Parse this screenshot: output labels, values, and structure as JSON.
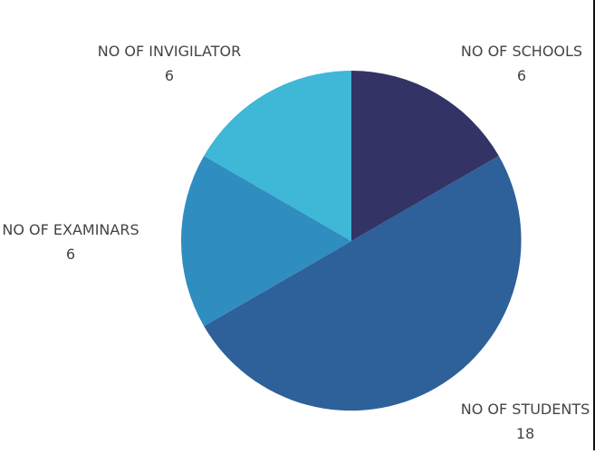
{
  "chart_data": {
    "type": "pie",
    "title": "",
    "slices": [
      {
        "label": "NO OF SCHOOLS",
        "value": 6,
        "display": "6",
        "color": "#333366"
      },
      {
        "label": "NO OF STUDENTS",
        "value": 18,
        "display": "18",
        "color": "#2e6099"
      },
      {
        "label": "NO OF EXAMINARS",
        "value": 6,
        "display": "6",
        "color": "#2f8dbf"
      },
      {
        "label": "NO OF INVIGILATOR",
        "value": 6,
        "display": "6",
        "color": "#3fb7d7"
      }
    ],
    "start_angle": "12 o'clock",
    "direction": "clockwise",
    "labels": "outside, name with value below"
  }
}
